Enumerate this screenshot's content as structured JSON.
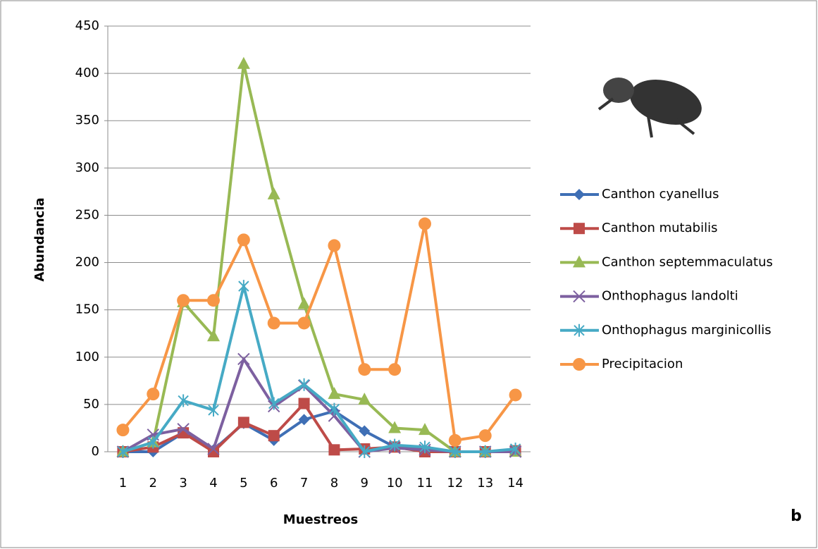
{
  "chart_data": {
    "type": "line",
    "x_label": "Muestreos",
    "y_label": "Abundancia",
    "annotation": "b",
    "categories": [
      "1",
      "2",
      "3",
      "4",
      "5",
      "6",
      "7",
      "8",
      "9",
      "10",
      "11",
      "12",
      "13",
      "14"
    ],
    "ylim": [
      0,
      450
    ],
    "yticks": [
      0,
      50,
      100,
      150,
      200,
      250,
      300,
      350,
      400,
      450
    ],
    "grid": true,
    "legend": "right",
    "series": [
      {
        "name": "Canthon cyanellus",
        "color": "#3f6fb5",
        "marker": "diamond",
        "values": [
          0,
          0,
          20,
          2,
          30,
          12,
          34,
          43,
          22,
          5,
          2,
          0,
          0,
          1
        ]
      },
      {
        "name": "Canthon mutabilis",
        "color": "#be4b48",
        "marker": "square",
        "values": [
          0,
          5,
          20,
          0,
          31,
          17,
          51,
          2,
          3,
          5,
          0,
          0,
          0,
          1
        ]
      },
      {
        "name": "Canthon septemmaculatus",
        "color": "#98b954",
        "marker": "triangle",
        "values": [
          0,
          10,
          158,
          122,
          410,
          272,
          156,
          61,
          55,
          25,
          23,
          0,
          0,
          0
        ]
      },
      {
        "name": "Onthophagus landolti",
        "color": "#7d60a0",
        "marker": "x",
        "values": [
          0,
          18,
          24,
          3,
          98,
          48,
          70,
          38,
          0,
          4,
          2,
          0,
          0,
          0
        ]
      },
      {
        "name": "Onthophagus marginicollis",
        "color": "#46aac5",
        "marker": "star",
        "values": [
          0,
          10,
          54,
          44,
          175,
          51,
          71,
          45,
          0,
          7,
          5,
          0,
          0,
          3
        ]
      },
      {
        "name": "Precipitacion",
        "color": "#f79646",
        "marker": "circle",
        "values": [
          23,
          61,
          160,
          160,
          224,
          136,
          136,
          218,
          87,
          87,
          241,
          12,
          17,
          60
        ]
      }
    ]
  }
}
